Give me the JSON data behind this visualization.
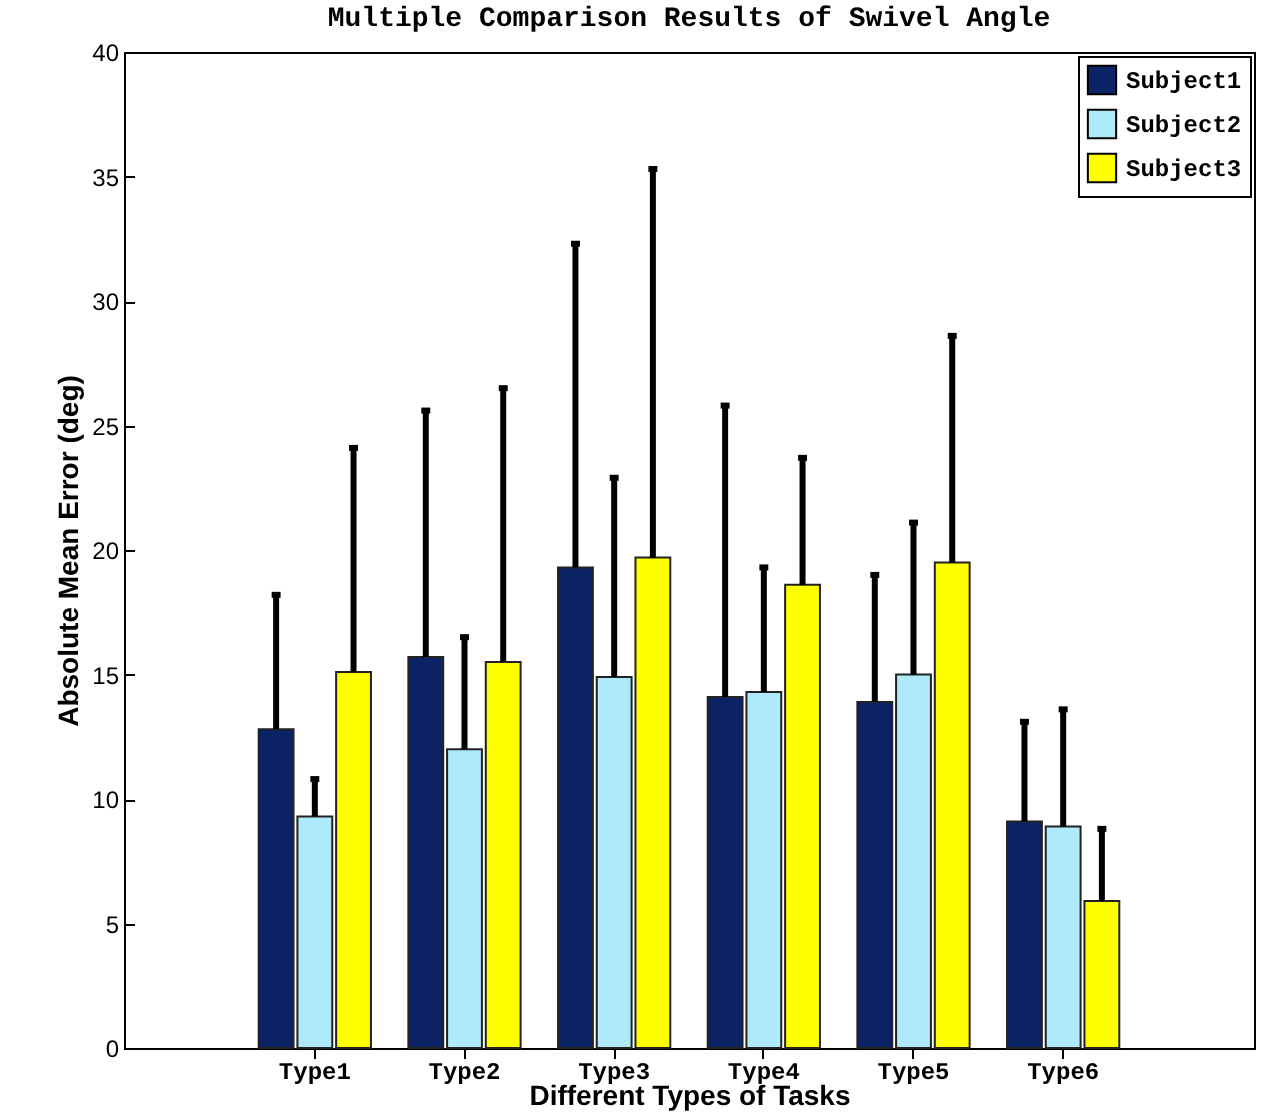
{
  "chart_data": {
    "type": "bar",
    "title": "Multiple Comparison Results of Swivel Angle",
    "xlabel": "Different Types of Tasks",
    "ylabel": "Absolute Mean Error (deg)",
    "categories": [
      "Type1",
      "Type2",
      "Type3",
      "Type4",
      "Type5",
      "Type6"
    ],
    "series": [
      {
        "name": "Subject1",
        "color": "#0b2265",
        "values": [
          12.8,
          15.7,
          19.3,
          14.1,
          13.9,
          9.1
        ],
        "errors": [
          [
            12.8,
            18.2
          ],
          [
            15.7,
            25.6
          ],
          [
            19.3,
            32.3
          ],
          [
            14.1,
            25.8
          ],
          [
            13.9,
            19.0
          ],
          [
            9.1,
            13.1
          ]
        ]
      },
      {
        "name": "Subject2",
        "color": "#aeeafa",
        "values": [
          9.3,
          12.0,
          14.9,
          14.3,
          15.0,
          8.9
        ],
        "errors": [
          [
            9.3,
            10.8
          ],
          [
            12.0,
            16.5
          ],
          [
            14.9,
            22.9
          ],
          [
            14.3,
            19.3
          ],
          [
            15.0,
            21.1
          ],
          [
            8.9,
            13.6
          ]
        ]
      },
      {
        "name": "Subject3",
        "color": "#ffff00",
        "values": [
          15.1,
          15.5,
          19.7,
          18.6,
          19.5,
          5.9
        ],
        "errors": [
          [
            15.1,
            24.1
          ],
          [
            15.5,
            26.5
          ],
          [
            19.7,
            35.3
          ],
          [
            18.6,
            23.7
          ],
          [
            19.5,
            28.6
          ],
          [
            5.9,
            8.8
          ]
        ]
      }
    ],
    "ylim": [
      0,
      40
    ],
    "yticks": [
      0,
      5,
      10,
      15,
      20,
      25,
      30,
      35,
      40
    ],
    "legend": "top right"
  }
}
